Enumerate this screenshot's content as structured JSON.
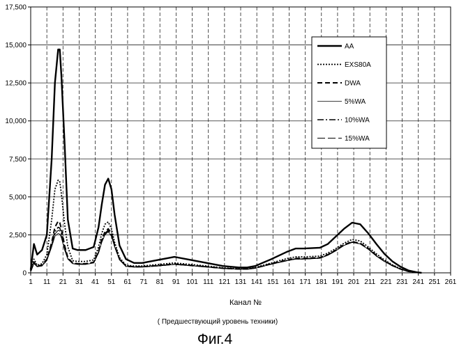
{
  "chart_data": {
    "type": "line",
    "xlabel": "Канал №",
    "ylabel": "",
    "caption": "( Предшествующий уровень техники)",
    "figure_label": "Фиг.4",
    "xlim": [
      1,
      261
    ],
    "ylim": [
      0,
      17500
    ],
    "xticks": [
      1,
      11,
      21,
      31,
      41,
      51,
      61,
      71,
      81,
      91,
      101,
      111,
      121,
      131,
      141,
      151,
      161,
      171,
      181,
      191,
      201,
      211,
      221,
      231,
      241,
      251,
      261
    ],
    "yticks": [
      0,
      2500,
      5000,
      7500,
      10000,
      12500,
      15000,
      17500
    ],
    "ytick_labels": [
      "0",
      "2,500",
      "5,000",
      "7,500",
      "10,000",
      "12,500",
      "15,000",
      "17,500"
    ],
    "grid": true,
    "legend_position": "top-right",
    "x": [
      1,
      3,
      5,
      8,
      11,
      14,
      16,
      18,
      19,
      20,
      22,
      24,
      27,
      30,
      35,
      40,
      43,
      45,
      47,
      49,
      51,
      53,
      56,
      60,
      65,
      70,
      80,
      90,
      100,
      110,
      120,
      130,
      135,
      140,
      150,
      160,
      165,
      170,
      180,
      185,
      190,
      195,
      200,
      205,
      210,
      215,
      220,
      225,
      230,
      235,
      240,
      243
    ],
    "series": [
      {
        "name": "AA",
        "style": "solid-thick",
        "values": [
          200,
          1900,
          1200,
          1500,
          2500,
          7500,
          12500,
          14700,
          14700,
          13000,
          8500,
          3500,
          1600,
          1500,
          1500,
          1700,
          3000,
          4500,
          5800,
          6200,
          5500,
          3800,
          1800,
          900,
          650,
          650,
          850,
          1050,
          850,
          650,
          450,
          350,
          350,
          450,
          900,
          1400,
          1600,
          1600,
          1650,
          1900,
          2400,
          2900,
          3300,
          3200,
          2600,
          1900,
          1250,
          750,
          400,
          150,
          40,
          0
        ]
      },
      {
        "name": "EXS80A",
        "style": "dotted",
        "values": [
          150,
          900,
          500,
          600,
          1200,
          3500,
          5500,
          6100,
          6000,
          5200,
          3200,
          1700,
          800,
          750,
          750,
          850,
          1700,
          2600,
          3200,
          3350,
          2900,
          2000,
          1000,
          500,
          450,
          450,
          550,
          650,
          550,
          450,
          330,
          270,
          270,
          350,
          650,
          950,
          1050,
          1050,
          1100,
          1300,
          1600,
          1950,
          2200,
          2100,
          1700,
          1250,
          850,
          520,
          270,
          100,
          30,
          0
        ]
      },
      {
        "name": "DWA",
        "style": "dashed",
        "values": [
          120,
          700,
          450,
          500,
          900,
          2000,
          3000,
          3400,
          3300,
          2900,
          1800,
          1000,
          650,
          600,
          600,
          700,
          1400,
          2200,
          2700,
          2900,
          2600,
          1800,
          900,
          450,
          400,
          400,
          480,
          580,
          500,
          400,
          300,
          250,
          250,
          320,
          600,
          850,
          950,
          950,
          1000,
          1200,
          1500,
          1850,
          2050,
          1950,
          1600,
          1150,
          780,
          480,
          250,
          90,
          25,
          0
        ]
      },
      {
        "name": "5%WA",
        "style": "thin",
        "values": [
          100,
          600,
          400,
          450,
          800,
          1700,
          2400,
          2600,
          2550,
          2300,
          1500,
          900,
          600,
          550,
          550,
          650,
          1300,
          2000,
          2500,
          2700,
          2400,
          1700,
          850,
          420,
          380,
          380,
          450,
          550,
          470,
          380,
          290,
          240,
          240,
          300,
          560,
          800,
          900,
          900,
          950,
          1150,
          1450,
          1800,
          2000,
          1900,
          1550,
          1100,
          750,
          460,
          240,
          85,
          20,
          0
        ]
      },
      {
        "name": "10%WA",
        "style": "dash-dot",
        "values": [
          110,
          650,
          420,
          480,
          850,
          1900,
          2700,
          3000,
          2950,
          2600,
          1650,
          950,
          620,
          580,
          580,
          680,
          1350,
          2100,
          2600,
          2800,
          2500,
          1750,
          880,
          430,
          390,
          390,
          470,
          560,
          480,
          390,
          295,
          245,
          245,
          310,
          580,
          820,
          920,
          920,
          980,
          1180,
          1480,
          1820,
          2020,
          1920,
          1570,
          1120,
          760,
          470,
          245,
          88,
          22,
          0
        ]
      },
      {
        "name": "15%WA",
        "style": "long-dash",
        "values": [
          105,
          620,
          410,
          460,
          820,
          1800,
          2550,
          2800,
          2750,
          2450,
          1550,
          920,
          610,
          560,
          560,
          660,
          1320,
          2050,
          2550,
          2750,
          2450,
          1720,
          860,
          425,
          385,
          385,
          460,
          555,
          475,
          385,
          292,
          242,
          242,
          305,
          570,
          810,
          910,
          910,
          965,
          1165,
          1465,
          1810,
          2010,
          1910,
          1560,
          1110,
          755,
          465,
          242,
          86,
          21,
          0
        ]
      }
    ]
  },
  "colors": {
    "line": "#000000",
    "grid": "#222222",
    "background": "#ffffff"
  }
}
